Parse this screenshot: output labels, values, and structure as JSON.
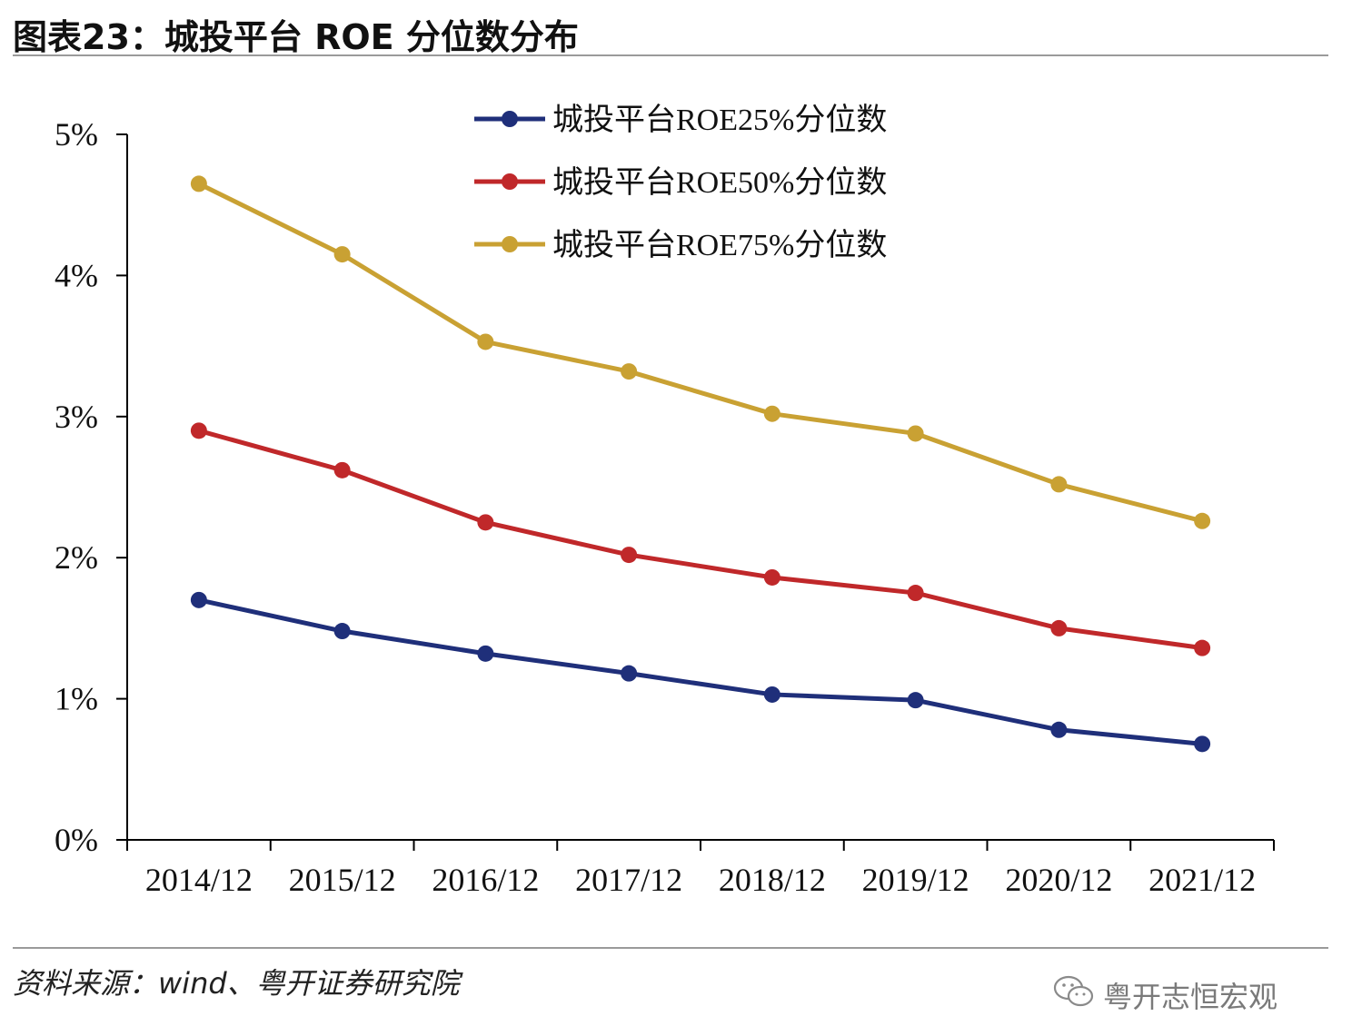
{
  "header": {
    "title": "图表23：城投平台 ROE 分位数分布"
  },
  "footer": {
    "source": "资料来源：wind、粤开证券研究院",
    "watermark": "粤开志恒宏观"
  },
  "chart_data": {
    "type": "line",
    "title": "图表23：城投平台 ROE 分位数分布",
    "xlabel": "",
    "ylabel": "",
    "categories": [
      "2014/12",
      "2015/12",
      "2016/12",
      "2017/12",
      "2018/12",
      "2019/12",
      "2020/12",
      "2021/12"
    ],
    "ylim": [
      0,
      5
    ],
    "yticks": [
      "0%",
      "1%",
      "2%",
      "3%",
      "4%",
      "5%"
    ],
    "legend_position": "top-right",
    "grid": false,
    "series": [
      {
        "name": "城投平台ROE25%分位数",
        "color": "#1f2f7a",
        "values": [
          1.7,
          1.48,
          1.32,
          1.18,
          1.03,
          0.99,
          0.78,
          0.68
        ]
      },
      {
        "name": "城投平台ROE50%分位数",
        "color": "#c0282a",
        "values": [
          2.9,
          2.62,
          2.25,
          2.02,
          1.86,
          1.75,
          1.5,
          1.36
        ]
      },
      {
        "name": "城投平台ROE75%分位数",
        "color": "#c9a133",
        "values": [
          4.65,
          4.15,
          3.53,
          3.32,
          3.02,
          2.88,
          2.52,
          2.26
        ]
      }
    ]
  }
}
